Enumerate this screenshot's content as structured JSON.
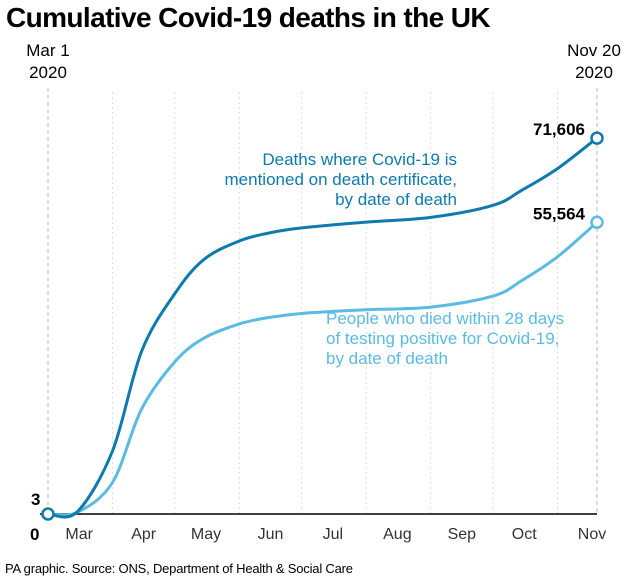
{
  "title": "Cumulative Covid-19 deaths in the UK",
  "start_label": {
    "line1": "Mar 1",
    "line2": "2020"
  },
  "end_label": {
    "line1": "Nov 20",
    "line2": "2020"
  },
  "source": "PA graphic. Source: ONS, Department of Health & Social Care",
  "colors": {
    "ons": "#0e7aad",
    "dhsc": "#5bbbe2",
    "grid": "#c8c8c8",
    "axis": "#000000"
  },
  "chart_data": {
    "type": "line",
    "title": "Cumulative Covid-19 deaths in the UK",
    "x_tick_labels": [
      "Mar",
      "Apr",
      "May",
      "Jun",
      "Jul",
      "Aug",
      "Sep",
      "Oct",
      "Nov"
    ],
    "x_range": [
      "2020-03-01",
      "2020-11-20"
    ],
    "y_range": [
      0,
      80000
    ],
    "y_tick_label": "0",
    "series": [
      {
        "name": "Deaths where Covid-19 is mentioned on death certificate, by date of death",
        "label_lines": [
          "Deaths where Covid-19 is",
          "mentioned on death certificate,",
          "by date of death"
        ],
        "start_value": 3,
        "start_value_label": "3",
        "end_value": 71606,
        "end_value_label": "71,606",
        "points": [
          {
            "date": "2020-03-01",
            "value": 3
          },
          {
            "date": "2020-03-15",
            "value": 400
          },
          {
            "date": "2020-04-01",
            "value": 12000
          },
          {
            "date": "2020-04-15",
            "value": 31000
          },
          {
            "date": "2020-05-01",
            "value": 42000
          },
          {
            "date": "2020-05-15",
            "value": 48500
          },
          {
            "date": "2020-06-01",
            "value": 52000
          },
          {
            "date": "2020-06-15",
            "value": 53500
          },
          {
            "date": "2020-07-01",
            "value": 54500
          },
          {
            "date": "2020-08-01",
            "value": 55600
          },
          {
            "date": "2020-09-01",
            "value": 56500
          },
          {
            "date": "2020-10-01",
            "value": 58800
          },
          {
            "date": "2020-10-15",
            "value": 61700
          },
          {
            "date": "2020-11-01",
            "value": 65800
          },
          {
            "date": "2020-11-20",
            "value": 71606
          }
        ]
      },
      {
        "name": "People who died within 28 days of testing positive for Covid-19, by date of death",
        "label_lines": [
          "People who died within 28 days",
          "of testing positive for Covid-19,",
          "by date of death"
        ],
        "end_value": 55564,
        "end_value_label": "55,564",
        "points": [
          {
            "date": "2020-03-01",
            "value": 3
          },
          {
            "date": "2020-03-15",
            "value": 300
          },
          {
            "date": "2020-04-01",
            "value": 6000
          },
          {
            "date": "2020-04-15",
            "value": 20000
          },
          {
            "date": "2020-05-01",
            "value": 29000
          },
          {
            "date": "2020-05-15",
            "value": 33500
          },
          {
            "date": "2020-06-01",
            "value": 36200
          },
          {
            "date": "2020-06-15",
            "value": 37400
          },
          {
            "date": "2020-07-01",
            "value": 38200
          },
          {
            "date": "2020-08-01",
            "value": 38900
          },
          {
            "date": "2020-09-01",
            "value": 39400
          },
          {
            "date": "2020-10-01",
            "value": 41500
          },
          {
            "date": "2020-10-15",
            "value": 44500
          },
          {
            "date": "2020-11-01",
            "value": 49000
          },
          {
            "date": "2020-11-20",
            "value": 55564
          }
        ]
      }
    ]
  }
}
